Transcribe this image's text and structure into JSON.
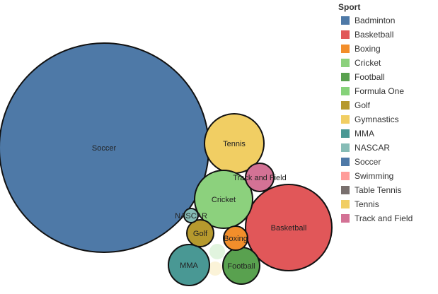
{
  "chart_data": {
    "type": "bubble",
    "legend_title": "Sport",
    "legend_position": "right",
    "legend": [
      {
        "name": "Badminton",
        "color": "#4e79a7"
      },
      {
        "name": "Basketball",
        "color": "#e15759"
      },
      {
        "name": "Boxing",
        "color": "#f28e2b"
      },
      {
        "name": "Cricket",
        "color": "#8cd17d"
      },
      {
        "name": "Football",
        "color": "#59a14f"
      },
      {
        "name": "Formula One",
        "color": "#86d27a"
      },
      {
        "name": "Golf",
        "color": "#b6992d"
      },
      {
        "name": "Gymnastics",
        "color": "#f1ce63"
      },
      {
        "name": "MMA",
        "color": "#499894"
      },
      {
        "name": "NASCAR",
        "color": "#86bcb6"
      },
      {
        "name": "Soccer",
        "color": "#4e79a7"
      },
      {
        "name": "Swimming",
        "color": "#ff9d9a"
      },
      {
        "name": "Table Tennis",
        "color": "#79706e"
      },
      {
        "name": "Tennis",
        "color": "#f1ce63"
      },
      {
        "name": "Track and Field",
        "color": "#d37295"
      }
    ],
    "bubbles": [
      {
        "sport": "Soccer",
        "label": "Soccer",
        "relative_size": 100
      },
      {
        "sport": "Basketball",
        "label": "Basketball",
        "relative_size": 27.5
      },
      {
        "sport": "Tennis",
        "label": "Tennis",
        "relative_size": 11.9
      },
      {
        "sport": "Cricket",
        "label": "Cricket",
        "relative_size": 11.5
      },
      {
        "sport": "Track and Field",
        "label": "Track and Field",
        "relative_size": 2.7
      },
      {
        "sport": "MMA",
        "label": "MMA",
        "relative_size": 4.6
      },
      {
        "sport": "Football",
        "label": "Football",
        "relative_size": 4.0
      },
      {
        "sport": "Golf",
        "label": "Golf",
        "relative_size": 2.3
      },
      {
        "sport": "Boxing",
        "label": "Boxing",
        "relative_size": 1.9
      },
      {
        "sport": "NASCAR",
        "label": "NASCAR",
        "relative_size": 0.6
      },
      {
        "sport": "Formula One",
        "label": "",
        "relative_size": 0.7
      },
      {
        "sport": "Gymnastics",
        "label": "",
        "relative_size": 0.6
      }
    ]
  }
}
